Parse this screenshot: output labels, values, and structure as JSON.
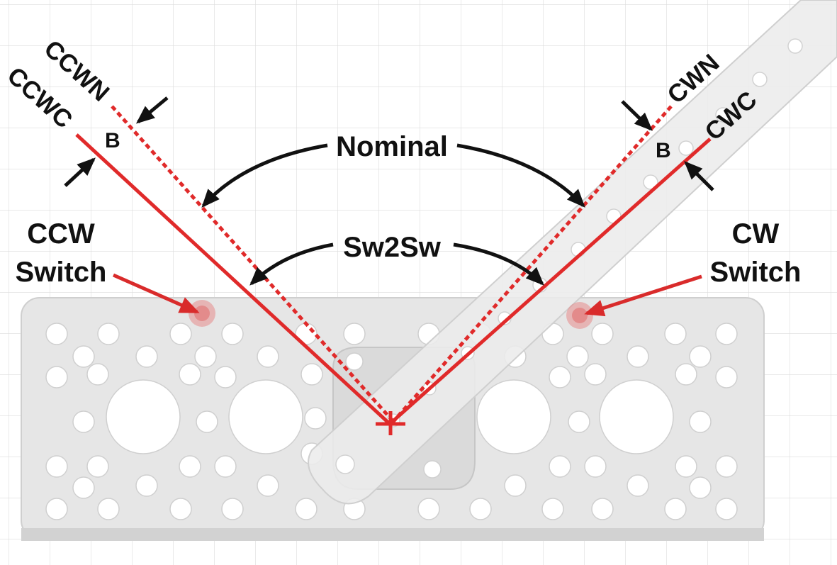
{
  "labels": {
    "ccw_nominal": "CCWN",
    "ccw_contact": "CCWC",
    "cw_nominal": "CWN",
    "cw_contact": "CWC",
    "ccw_backlash": "B",
    "cw_backlash": "B",
    "nominal": "Nominal",
    "sw2sw": "Sw2Sw",
    "ccw_switch_line1": "CCW",
    "ccw_switch_line2": "Switch",
    "cw_switch_line1": "CW",
    "cw_switch_line2": "Switch"
  },
  "colors": {
    "grid": "#dcdcdc",
    "plate": "#e6e6e6",
    "plate_edge": "#c9c9c9",
    "hole": "#ffffff",
    "arm": "#ececec",
    "contact_line": "#e02a2a",
    "arrow_black": "#111111",
    "arrow_red": "#d92b2b",
    "switch": "#e58a8a"
  }
}
